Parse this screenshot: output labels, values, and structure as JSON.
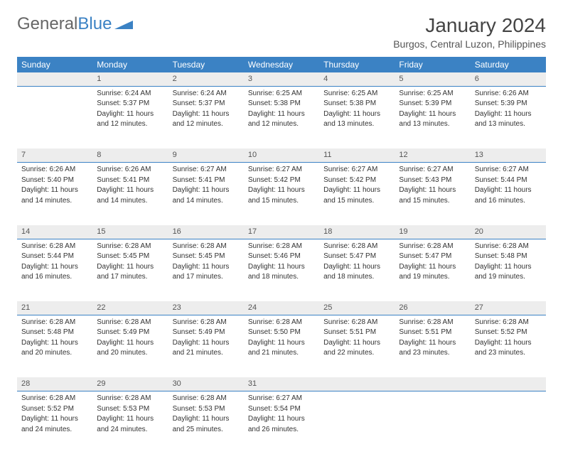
{
  "logo": {
    "part1": "General",
    "part2": "Blue"
  },
  "title": "January 2024",
  "location": "Burgos, Central Luzon, Philippines",
  "weekdays": [
    "Sunday",
    "Monday",
    "Tuesday",
    "Wednesday",
    "Thursday",
    "Friday",
    "Saturday"
  ],
  "header_bg": "#3b82c4",
  "header_fg": "#ffffff",
  "daynum_bg": "#ededed",
  "daynum_border": "#3b82c4",
  "font_family": "Arial",
  "weeks": [
    {
      "nums": [
        "",
        "1",
        "2",
        "3",
        "4",
        "5",
        "6"
      ],
      "cells": [
        null,
        {
          "sunrise": "Sunrise: 6:24 AM",
          "sunset": "Sunset: 5:37 PM",
          "daylight1": "Daylight: 11 hours",
          "daylight2": "and 12 minutes."
        },
        {
          "sunrise": "Sunrise: 6:24 AM",
          "sunset": "Sunset: 5:37 PM",
          "daylight1": "Daylight: 11 hours",
          "daylight2": "and 12 minutes."
        },
        {
          "sunrise": "Sunrise: 6:25 AM",
          "sunset": "Sunset: 5:38 PM",
          "daylight1": "Daylight: 11 hours",
          "daylight2": "and 12 minutes."
        },
        {
          "sunrise": "Sunrise: 6:25 AM",
          "sunset": "Sunset: 5:38 PM",
          "daylight1": "Daylight: 11 hours",
          "daylight2": "and 13 minutes."
        },
        {
          "sunrise": "Sunrise: 6:25 AM",
          "sunset": "Sunset: 5:39 PM",
          "daylight1": "Daylight: 11 hours",
          "daylight2": "and 13 minutes."
        },
        {
          "sunrise": "Sunrise: 6:26 AM",
          "sunset": "Sunset: 5:39 PM",
          "daylight1": "Daylight: 11 hours",
          "daylight2": "and 13 minutes."
        }
      ]
    },
    {
      "nums": [
        "7",
        "8",
        "9",
        "10",
        "11",
        "12",
        "13"
      ],
      "cells": [
        {
          "sunrise": "Sunrise: 6:26 AM",
          "sunset": "Sunset: 5:40 PM",
          "daylight1": "Daylight: 11 hours",
          "daylight2": "and 14 minutes."
        },
        {
          "sunrise": "Sunrise: 6:26 AM",
          "sunset": "Sunset: 5:41 PM",
          "daylight1": "Daylight: 11 hours",
          "daylight2": "and 14 minutes."
        },
        {
          "sunrise": "Sunrise: 6:27 AM",
          "sunset": "Sunset: 5:41 PM",
          "daylight1": "Daylight: 11 hours",
          "daylight2": "and 14 minutes."
        },
        {
          "sunrise": "Sunrise: 6:27 AM",
          "sunset": "Sunset: 5:42 PM",
          "daylight1": "Daylight: 11 hours",
          "daylight2": "and 15 minutes."
        },
        {
          "sunrise": "Sunrise: 6:27 AM",
          "sunset": "Sunset: 5:42 PM",
          "daylight1": "Daylight: 11 hours",
          "daylight2": "and 15 minutes."
        },
        {
          "sunrise": "Sunrise: 6:27 AM",
          "sunset": "Sunset: 5:43 PM",
          "daylight1": "Daylight: 11 hours",
          "daylight2": "and 15 minutes."
        },
        {
          "sunrise": "Sunrise: 6:27 AM",
          "sunset": "Sunset: 5:44 PM",
          "daylight1": "Daylight: 11 hours",
          "daylight2": "and 16 minutes."
        }
      ]
    },
    {
      "nums": [
        "14",
        "15",
        "16",
        "17",
        "18",
        "19",
        "20"
      ],
      "cells": [
        {
          "sunrise": "Sunrise: 6:28 AM",
          "sunset": "Sunset: 5:44 PM",
          "daylight1": "Daylight: 11 hours",
          "daylight2": "and 16 minutes."
        },
        {
          "sunrise": "Sunrise: 6:28 AM",
          "sunset": "Sunset: 5:45 PM",
          "daylight1": "Daylight: 11 hours",
          "daylight2": "and 17 minutes."
        },
        {
          "sunrise": "Sunrise: 6:28 AM",
          "sunset": "Sunset: 5:45 PM",
          "daylight1": "Daylight: 11 hours",
          "daylight2": "and 17 minutes."
        },
        {
          "sunrise": "Sunrise: 6:28 AM",
          "sunset": "Sunset: 5:46 PM",
          "daylight1": "Daylight: 11 hours",
          "daylight2": "and 18 minutes."
        },
        {
          "sunrise": "Sunrise: 6:28 AM",
          "sunset": "Sunset: 5:47 PM",
          "daylight1": "Daylight: 11 hours",
          "daylight2": "and 18 minutes."
        },
        {
          "sunrise": "Sunrise: 6:28 AM",
          "sunset": "Sunset: 5:47 PM",
          "daylight1": "Daylight: 11 hours",
          "daylight2": "and 19 minutes."
        },
        {
          "sunrise": "Sunrise: 6:28 AM",
          "sunset": "Sunset: 5:48 PM",
          "daylight1": "Daylight: 11 hours",
          "daylight2": "and 19 minutes."
        }
      ]
    },
    {
      "nums": [
        "21",
        "22",
        "23",
        "24",
        "25",
        "26",
        "27"
      ],
      "cells": [
        {
          "sunrise": "Sunrise: 6:28 AM",
          "sunset": "Sunset: 5:48 PM",
          "daylight1": "Daylight: 11 hours",
          "daylight2": "and 20 minutes."
        },
        {
          "sunrise": "Sunrise: 6:28 AM",
          "sunset": "Sunset: 5:49 PM",
          "daylight1": "Daylight: 11 hours",
          "daylight2": "and 20 minutes."
        },
        {
          "sunrise": "Sunrise: 6:28 AM",
          "sunset": "Sunset: 5:49 PM",
          "daylight1": "Daylight: 11 hours",
          "daylight2": "and 21 minutes."
        },
        {
          "sunrise": "Sunrise: 6:28 AM",
          "sunset": "Sunset: 5:50 PM",
          "daylight1": "Daylight: 11 hours",
          "daylight2": "and 21 minutes."
        },
        {
          "sunrise": "Sunrise: 6:28 AM",
          "sunset": "Sunset: 5:51 PM",
          "daylight1": "Daylight: 11 hours",
          "daylight2": "and 22 minutes."
        },
        {
          "sunrise": "Sunrise: 6:28 AM",
          "sunset": "Sunset: 5:51 PM",
          "daylight1": "Daylight: 11 hours",
          "daylight2": "and 23 minutes."
        },
        {
          "sunrise": "Sunrise: 6:28 AM",
          "sunset": "Sunset: 5:52 PM",
          "daylight1": "Daylight: 11 hours",
          "daylight2": "and 23 minutes."
        }
      ]
    },
    {
      "nums": [
        "28",
        "29",
        "30",
        "31",
        "",
        "",
        ""
      ],
      "cells": [
        {
          "sunrise": "Sunrise: 6:28 AM",
          "sunset": "Sunset: 5:52 PM",
          "daylight1": "Daylight: 11 hours",
          "daylight2": "and 24 minutes."
        },
        {
          "sunrise": "Sunrise: 6:28 AM",
          "sunset": "Sunset: 5:53 PM",
          "daylight1": "Daylight: 11 hours",
          "daylight2": "and 24 minutes."
        },
        {
          "sunrise": "Sunrise: 6:28 AM",
          "sunset": "Sunset: 5:53 PM",
          "daylight1": "Daylight: 11 hours",
          "daylight2": "and 25 minutes."
        },
        {
          "sunrise": "Sunrise: 6:27 AM",
          "sunset": "Sunset: 5:54 PM",
          "daylight1": "Daylight: 11 hours",
          "daylight2": "and 26 minutes."
        },
        null,
        null,
        null
      ]
    }
  ]
}
